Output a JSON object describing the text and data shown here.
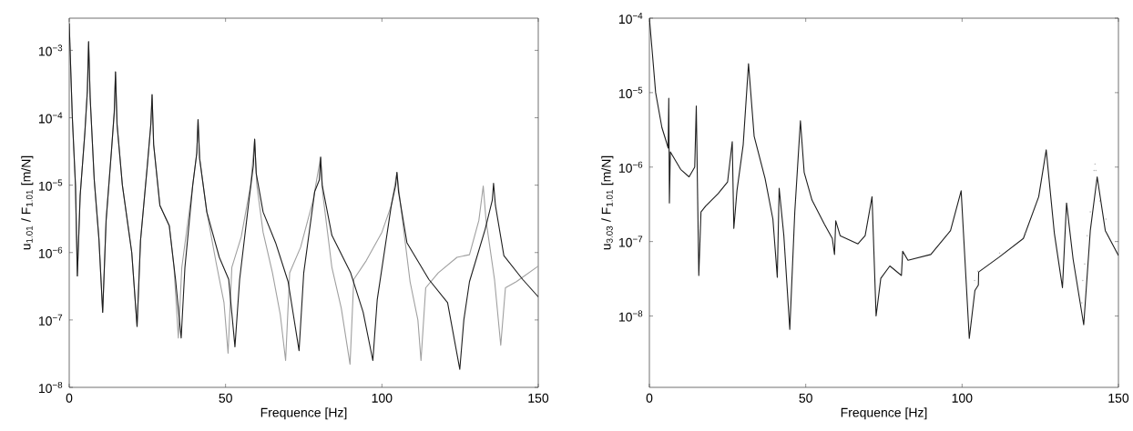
{
  "chart_data": [
    {
      "type": "line",
      "xlabel": "Frequence  [Hz]",
      "ylabel": "u$_{1.01}$ / F$_{1.01}$  [m/N]",
      "log": "y",
      "xlim": [
        0,
        150
      ],
      "ylim": [
        1e-08,
        0.003
      ],
      "xticks": [
        0,
        50,
        100,
        150
      ],
      "yticks": [
        {
          "value": 1e-08,
          "label": "10$^{−8}$"
        },
        {
          "value": 1e-07,
          "label": "10$^{−7}$"
        },
        {
          "value": 1e-06,
          "label": "10$^{−6}$"
        },
        {
          "value": 1e-05,
          "label": "10$^{−5}$"
        },
        {
          "value": 0.0001,
          "label": "10$^{−4}$"
        },
        {
          "value": 0.001,
          "label": "10$^{−3}$"
        }
      ],
      "series": [
        {
          "color": "#a0a0a0",
          "x": [
            0,
            1,
            2,
            2.6,
            3.5,
            5,
            5.8,
            6.2,
            6.7,
            8,
            9.5,
            10.7,
            11.8,
            13.5,
            14.4,
            14.8,
            15.3,
            17,
            20,
            21.7,
            22.8,
            25,
            26.1,
            26.5,
            27,
            29,
            32,
            33.5,
            34.9,
            36,
            39.5,
            40.8,
            41.2,
            41.7,
            44,
            47,
            49.5,
            50.8,
            52,
            55,
            58,
            59.3,
            60,
            62,
            65,
            67.5,
            69.2,
            70.5,
            74,
            78,
            80.4,
            81,
            84,
            87,
            89.8,
            91,
            95,
            100,
            103,
            104.8,
            106,
            109,
            111.5,
            112.5,
            114,
            118,
            124,
            128,
            131,
            132.4,
            133.3,
            136,
            138,
            139.5,
            143,
            150
          ],
          "values": [
            0.0025,
            0.0001,
            1e-05,
            4.5e-07,
            7e-06,
            6e-05,
            0.00025,
            0.00135,
            0.0002,
            1.2e-05,
            1.6e-06,
            1.3e-07,
            3e-06,
            3.2e-05,
            0.00012,
            0.00048,
            8e-05,
            1e-05,
            1e-06,
            8e-08,
            1.5e-06,
            2e-05,
            8e-05,
            0.00022,
            4e-05,
            5e-06,
            2.5e-06,
            6e-07,
            5.4e-08,
            6e-07,
            1e-05,
            3e-05,
            9.4e-05,
            2.5e-05,
            4e-06,
            7e-07,
            1.8e-07,
            3.2e-08,
            6e-07,
            1.7e-06,
            1e-05,
            4.8e-05,
            1e-05,
            2e-06,
            5e-07,
            1.2e-07,
            2.5e-08,
            5e-07,
            1.2e-06,
            6e-06,
            2.6e-05,
            8e-06,
            6e-07,
            1.5e-07,
            2.2e-08,
            4e-07,
            7.6e-07,
            2e-06,
            5e-06,
            1.55e-05,
            5e-06,
            3.7e-07,
            1e-07,
            2.5e-08,
            3e-07,
            5e-07,
            8.5e-07,
            9.3e-07,
            3e-06,
            9.7e-06,
            3e-06,
            4e-07,
            4.2e-08,
            3e-07,
            3.7e-07,
            6.3e-07
          ]
        },
        {
          "color": "#1e1e1e",
          "x": [
            0,
            1,
            2,
            2.6,
            3.5,
            5,
            5.8,
            6.2,
            6.7,
            8,
            9.5,
            10.7,
            11.8,
            13.5,
            14.4,
            14.8,
            15.3,
            17,
            20,
            21.7,
            22.8,
            25,
            26.1,
            26.5,
            27,
            29,
            32,
            34,
            35.8,
            37,
            39.5,
            40.8,
            41.2,
            41.7,
            44,
            48,
            51,
            53,
            54.5,
            57.5,
            58.9,
            59.3,
            59.8,
            62,
            66,
            70,
            73.5,
            75,
            78.5,
            80,
            80.4,
            80.9,
            84,
            90,
            94,
            97.1,
            98.5,
            103,
            104.4,
            104.8,
            105.3,
            108,
            115,
            121,
            124.9,
            126.2,
            128,
            133,
            135.3,
            135.7,
            136.3,
            139,
            145,
            150
          ],
          "values": [
            0.0025,
            0.0001,
            1e-05,
            4.5e-07,
            7e-06,
            6e-05,
            0.00025,
            0.00135,
            0.0002,
            1.2e-05,
            1.6e-06,
            1.3e-07,
            3e-06,
            3.2e-05,
            0.00012,
            0.00048,
            8e-05,
            1e-05,
            1e-06,
            8e-08,
            1.5e-06,
            2e-05,
            8e-05,
            0.00022,
            4e-05,
            5e-06,
            2.5e-06,
            4e-07,
            5.4e-08,
            6e-07,
            1e-05,
            3e-05,
            9.4e-05,
            2.5e-05,
            4e-06,
            8.5e-07,
            4e-07,
            4e-08,
            4e-07,
            6e-06,
            2e-05,
            4.8e-05,
            1.5e-05,
            4e-06,
            1.4e-06,
            3.7e-07,
            3.5e-08,
            5e-07,
            8e-06,
            1.2e-05,
            2.6e-05,
            1e-05,
            1.8e-06,
            5e-07,
            1.3e-07,
            2.5e-08,
            2e-07,
            5e-06,
            1e-05,
            1.55e-05,
            8e-06,
            1.4e-06,
            4e-07,
            1.8e-07,
            1.85e-08,
            1e-07,
            3.7e-07,
            2.2e-06,
            6e-06,
            1.07e-05,
            5e-06,
            9e-07,
            4e-07,
            2.2e-07
          ]
        }
      ]
    },
    {
      "type": "line",
      "xlabel": "Frequence  [Hz]",
      "ylabel": "u$_{3.03}$ / F$_{1.01}$  [m/N]",
      "log": "y",
      "xlim": [
        0,
        150
      ],
      "ylim": [
        1.1e-09,
        0.0001
      ],
      "xticks": [
        0,
        50,
        100,
        150
      ],
      "yticks": [
        {
          "value": 1e-08,
          "label": "10$^{−8}$"
        },
        {
          "value": 1e-07,
          "label": "10$^{−7}$"
        },
        {
          "value": 1e-06,
          "label": "10$^{−6}$"
        },
        {
          "value": 1e-05,
          "label": "10$^{−5}$"
        },
        {
          "value": 0.0001,
          "label": "10$^{−4}$"
        }
      ],
      "series": [
        {
          "type": "scatter",
          "color": "#a8a8a8",
          "x": [
            104,
            105,
            112,
            120,
            138.3,
            138.6,
            139.2,
            140,
            141,
            142.2,
            142.5,
            142.8,
            144,
            146
          ],
          "values": [
            3e-08,
            4e-08,
            7e-08,
            1.3e-07,
            1.5e-08,
            3e-08,
            5e-08,
            1.2e-07,
            2.5e-07,
            9e-07,
            1.1e-06,
            9e-07,
            3.5e-07,
            2e-07
          ]
        },
        {
          "color": "#1e1e1e",
          "x": [
            0,
            1,
            2,
            4,
            5.4,
            6,
            6.2,
            6.4,
            6.7,
            10,
            12.7,
            14.5,
            15,
            15.8,
            16.5,
            18,
            22,
            25,
            26.5,
            27,
            28,
            30,
            31.7,
            33.5,
            37,
            39.5,
            40.9,
            41.5,
            43,
            44.9,
            46.5,
            48.3,
            49.5,
            52,
            56,
            58.5,
            59.2,
            59.6,
            61,
            66.7,
            69,
            71.2,
            72.5,
            74,
            76.9,
            80.6,
            81,
            82.7,
            90,
            96.3,
            99.7,
            102.3,
            104.1,
            105.2,
            105.3,
            111.9,
            119.6,
            124.5,
            126.9,
            129.5,
            132.1,
            133.4,
            135.5,
            138.9,
            141,
            143.2,
            145.8,
            150
          ],
          "values": [
            0.0001,
            3.2e-05,
            1e-05,
            3.4e-06,
            2.2e-06,
            1.8e-06,
            8.4e-06,
            3.3e-07,
            1.6e-06,
            9.3e-07,
            7.4e-07,
            1e-06,
            6.6e-06,
            3.5e-08,
            2.5e-07,
            3e-07,
            4.4e-07,
            6.3e-07,
            2.2e-06,
            1.5e-07,
            4.8e-07,
            2e-06,
            2.45e-05,
            2.6e-06,
            7e-07,
            2e-07,
            3.3e-08,
            5.2e-07,
            1.2e-07,
            6.6e-09,
            2.5e-07,
            4.2e-06,
            8.5e-07,
            3.6e-07,
            1.7e-07,
            1.1e-07,
            6.7e-08,
            1.9e-07,
            1.2e-07,
            9.3e-08,
            1.2e-07,
            4e-07,
            1e-08,
            3.2e-08,
            4.7e-08,
            3.5e-08,
            7.4e-08,
            5.6e-08,
            6.7e-08,
            1.4e-07,
            4.8e-07,
            5e-09,
            2.2e-08,
            2.6e-08,
            3.9e-08,
            6.2e-08,
            1.1e-07,
            4e-07,
            1.7e-06,
            1.3e-07,
            2.4e-08,
            3.3e-07,
            5.8e-08,
            7.6e-09,
            1.4e-07,
            7.4e-07,
            1.4e-07,
            6.5e-08
          ]
        }
      ]
    }
  ]
}
